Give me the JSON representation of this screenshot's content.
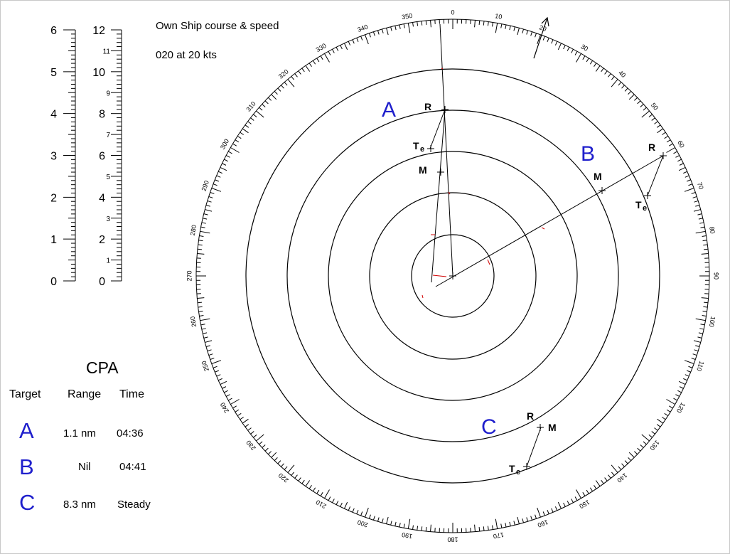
{
  "own_ship": {
    "title": "Own Ship course & speed",
    "value": "020 at 20 kts"
  },
  "scales": {
    "left": {
      "labels": [
        "0",
        "1",
        "2",
        "3",
        "4",
        "5",
        "6"
      ]
    },
    "right": {
      "major_labels": [
        "0",
        "2",
        "4",
        "6",
        "8",
        "10",
        "12"
      ],
      "minor_labels": [
        "1",
        "3",
        "5",
        "7",
        "9",
        "11"
      ]
    }
  },
  "cpa": {
    "title": "CPA",
    "headers": {
      "target": "Target",
      "range": "Range",
      "time": "Time"
    },
    "rows": [
      {
        "target": "A",
        "range": "1.1 nm",
        "time": "04:36"
      },
      {
        "target": "B",
        "range": "Nil",
        "time": "04:41"
      },
      {
        "target": "C",
        "range": "8.3 nm",
        "time": "Steady"
      }
    ]
  },
  "plot": {
    "target_labels": [
      "A",
      "B",
      "C"
    ],
    "point_labels": {
      "r": "R",
      "m": "M",
      "te_main": "T",
      "te_sub": "e"
    },
    "bearing_labels": [
      "0",
      "10",
      "20",
      "30",
      "40",
      "50",
      "60",
      "70",
      "80",
      "90",
      "100",
      "110",
      "120",
      "130",
      "140",
      "150",
      "160",
      "170",
      "180",
      "190",
      "200",
      "210",
      "220",
      "230",
      "240",
      "250",
      "260",
      "270",
      "280",
      "290",
      "300",
      "310",
      "320",
      "330",
      "340",
      "350"
    ],
    "colors": {
      "target_letters": "#1f1fcc",
      "red_marks": "#d00000"
    }
  }
}
